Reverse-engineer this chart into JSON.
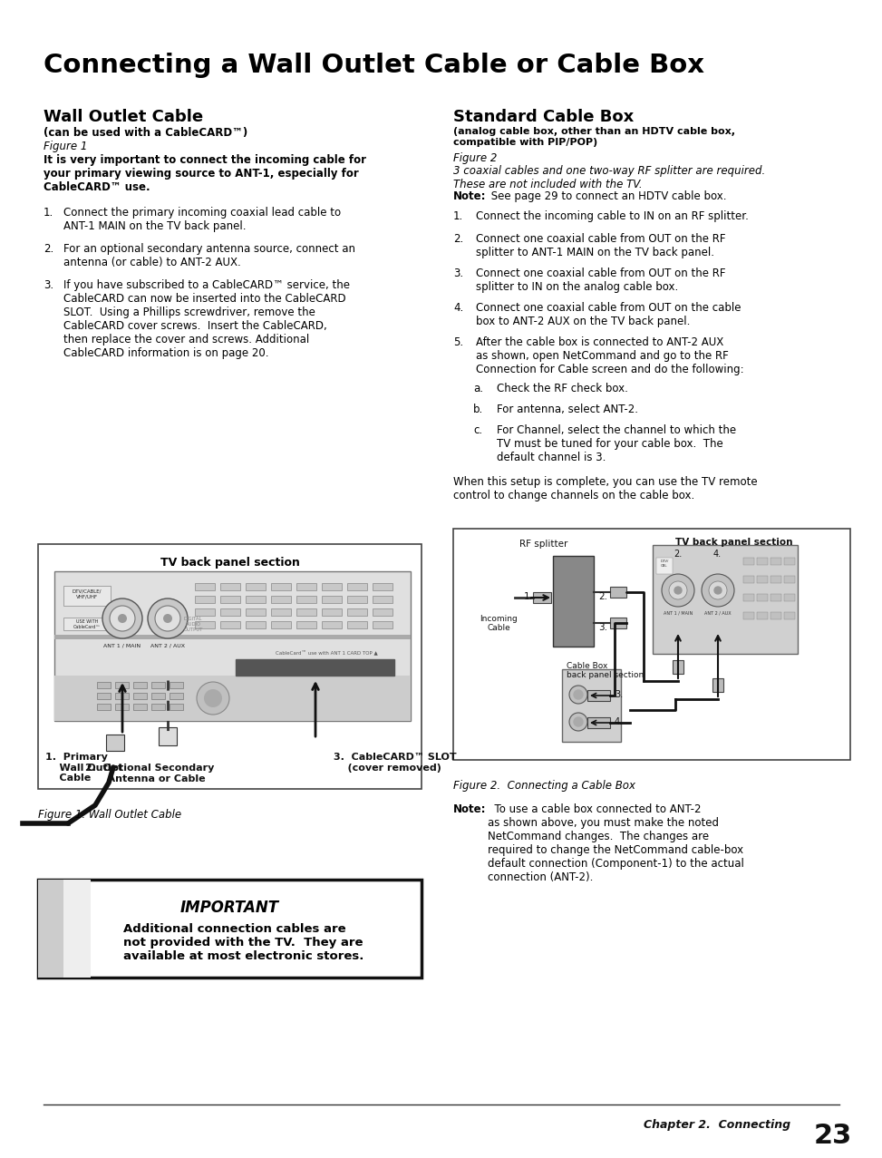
{
  "page_title": "Connecting a Wall Outlet Cable or Cable Box",
  "bg_color": "#ffffff",
  "text_color": "#000000",
  "fig_width": 9.54,
  "fig_height": 12.35,
  "left_section_title": "Wall Outlet Cable",
  "left_subtitle1": "(can be used with a CableCARD™)",
  "left_subtitle2": "Figure 1",
  "left_bold_text": "It is very important to connect the incoming cable for\nyour primary viewing source to ANT-1, especially for\nCableCARD™ use.",
  "left_items": [
    {
      "num": "1.",
      "text": "Connect the primary incoming coaxial lead cable to\nANT-1 MAIN on the TV back panel."
    },
    {
      "num": "2.",
      "text": "For an optional secondary antenna source, connect an\nantenna (or cable) to ANT-2 AUX."
    },
    {
      "num": "3.",
      "text": "If you have subscribed to a CableCARD™ service, the\nCableCARD can now be inserted into the CableCARD\nSLOT.  Using a Phillips screwdriver, remove the\nCableCARD cover screws.  Insert the CableCARD,\nthen replace the cover and screws. Additional\nCableCARD information is on page 20."
    }
  ],
  "fig1_caption": "Figure 1. Wall Outlet Cable",
  "fig1_title": "TV back panel section",
  "fig1_label1": "1.  Primary\n    Wall Outlet\n    Cable",
  "fig1_label2": "2.  Optional Secondary\n    Antenna or Cable",
  "fig1_label3": "3.  CableCARD™ SLOT\n    (cover removed)",
  "right_section_title": "Standard Cable Box",
  "right_subtitle1": "(analog cable box, other than an HDTV cable box,\ncompatible with PIP/POP)",
  "right_subtitle2": "Figure 2",
  "right_italic_text": "3 coaxial cables and one two-way RF splitter are required.\nThese are not included with the TV.",
  "right_note": "Note:  See page 29 to connect an HDTV cable box.",
  "right_items": [
    {
      "num": "1.",
      "text": "Connect the incoming cable to IN on an RF splitter."
    },
    {
      "num": "2.",
      "text": "Connect one coaxial cable from OUT on the RF\nsplitter to ANT-1 MAIN on the TV back panel."
    },
    {
      "num": "3.",
      "text": "Connect one coaxial cable from OUT on the RF\nsplitter to IN on the analog cable box."
    },
    {
      "num": "4.",
      "text": "Connect one coaxial cable from OUT on the cable\nbox to ANT-2 AUX on the TV back panel."
    },
    {
      "num": "5.",
      "text": "After the cable box is connected to ANT-2 AUX\nas shown, open NetCommand and go to the RF\nConnection for Cable screen and do the following:"
    }
  ],
  "right_subitems": [
    {
      "letter": "a.",
      "text": "Check the RF check box."
    },
    {
      "letter": "b.",
      "text": "For antenna, select ANT-2."
    },
    {
      "letter": "c.",
      "text": "For Channel, select the channel to which the\nTV must be tuned for your cable box.  The\ndefault channel is 3."
    }
  ],
  "right_connect_text": "When this setup is complete, you can use the TV remote\ncontrol to change channels on the cable box.",
  "fig2_caption": "Figure 2.  Connecting a Cable Box",
  "bottom_important_title": "IMPORTANT",
  "bottom_important_text": "Additional connection cables are\nnot provided with the TV.  They are\navailable at most electronic stores.",
  "bottom_right_note": "Note:  To use a cable box connected to ANT-2\nas shown above, you must make the noted\nNetCommand changes.  The changes are\nrequired to change the NetCommand cable-box\ndefault connection (Component-1) to the actual\nconnection (ANT-2).",
  "footer_text": "Chapter 2.  Connecting",
  "footer_page": "23"
}
